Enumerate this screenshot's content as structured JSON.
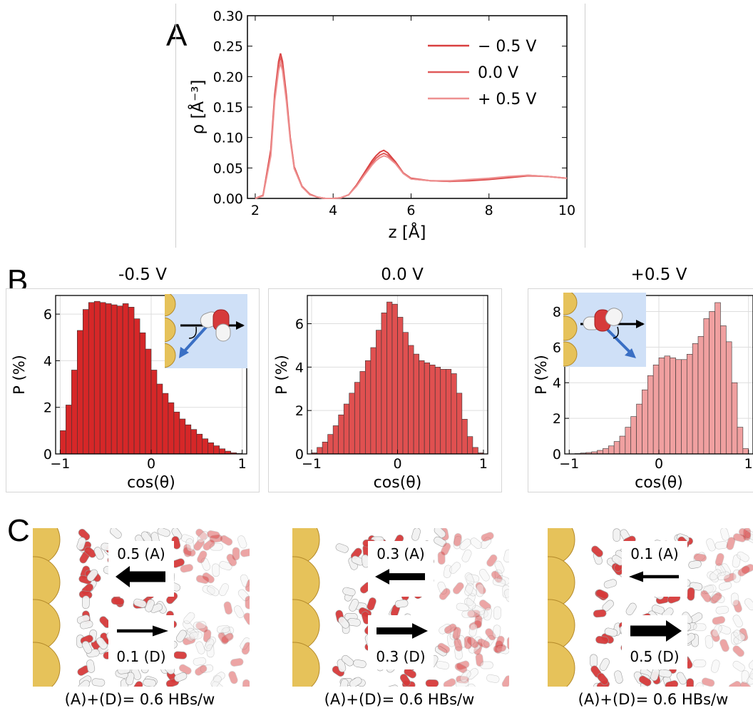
{
  "panels": {
    "a": "A",
    "b": "B",
    "c": "C"
  },
  "colors": {
    "neg": "#d62728",
    "zero": "#e05050",
    "pos": "#f0a0a0",
    "line_neg": "#d94040",
    "line_zero": "#e05a5a",
    "line_pos": "#ee9090",
    "inset_bg": "#cfe0f7",
    "gold": "#e6c25a",
    "oxygen": "#d63a3a"
  },
  "chart_data": [
    {
      "type": "line",
      "panel": "A",
      "xlabel": "z [Å]",
      "ylabel": "ρ [Å⁻³]",
      "xlim": [
        1.8,
        10
      ],
      "ylim": [
        0,
        0.3
      ],
      "x_ticks": [
        "2",
        "4",
        "6",
        "8",
        "10"
      ],
      "y_ticks": [
        "0.00",
        "0.05",
        "0.10",
        "0.15",
        "0.20",
        "0.25",
        "0.30"
      ],
      "legend_position": "top-right",
      "x": [
        2.0,
        2.2,
        2.4,
        2.5,
        2.6,
        2.65,
        2.7,
        2.8,
        2.9,
        3.0,
        3.2,
        3.4,
        3.6,
        3.8,
        4.0,
        4.2,
        4.4,
        4.6,
        4.8,
        5.0,
        5.1,
        5.2,
        5.3,
        5.4,
        5.6,
        5.8,
        6.0,
        6.5,
        7.0,
        7.5,
        8.0,
        8.5,
        9.0,
        9.5,
        10.0
      ],
      "series": [
        {
          "name": "− 0.5 V",
          "values": [
            0.0,
            0.005,
            0.08,
            0.17,
            0.225,
            0.238,
            0.225,
            0.17,
            0.1,
            0.052,
            0.02,
            0.007,
            0.002,
            0.0,
            0.0,
            0.001,
            0.006,
            0.022,
            0.042,
            0.062,
            0.07,
            0.076,
            0.079,
            0.075,
            0.06,
            0.042,
            0.033,
            0.029,
            0.028,
            0.029,
            0.031,
            0.034,
            0.037,
            0.036,
            0.033
          ]
        },
        {
          "name": "0.0 V",
          "values": [
            0.0,
            0.005,
            0.075,
            0.165,
            0.22,
            0.232,
            0.22,
            0.165,
            0.098,
            0.05,
            0.019,
            0.007,
            0.002,
            0.0,
            0.0,
            0.001,
            0.006,
            0.021,
            0.04,
            0.058,
            0.066,
            0.071,
            0.074,
            0.071,
            0.058,
            0.041,
            0.032,
            0.029,
            0.028,
            0.03,
            0.032,
            0.035,
            0.038,
            0.036,
            0.033
          ]
        },
        {
          "name": "+ 0.5 V",
          "values": [
            0.0,
            0.004,
            0.07,
            0.16,
            0.21,
            0.222,
            0.21,
            0.16,
            0.095,
            0.049,
            0.019,
            0.006,
            0.002,
            0.0,
            0.0,
            0.001,
            0.006,
            0.02,
            0.038,
            0.055,
            0.062,
            0.067,
            0.07,
            0.068,
            0.057,
            0.041,
            0.032,
            0.029,
            0.029,
            0.031,
            0.033,
            0.036,
            0.038,
            0.036,
            0.033
          ]
        }
      ]
    },
    {
      "type": "bar",
      "panel": "B",
      "title": "-0.5 V",
      "xlabel": "cos(θ)",
      "ylabel": "P (%)",
      "xlim": [
        -1.05,
        1.05
      ],
      "ylim": [
        0,
        6.8
      ],
      "x_ticks": [
        "−1",
        "0",
        "1"
      ],
      "y_ticks": [
        "0",
        "2",
        "4",
        "6"
      ],
      "bin_width": 0.0625,
      "bin_starts": [
        -1.0,
        -0.9375,
        -0.875,
        -0.8125,
        -0.75,
        -0.6875,
        -0.625,
        -0.5625,
        -0.5,
        -0.4375,
        -0.375,
        -0.3125,
        -0.25,
        -0.1875,
        -0.125,
        -0.0625,
        0.0,
        0.0625,
        0.125,
        0.1875,
        0.25,
        0.3125,
        0.375,
        0.4375,
        0.5,
        0.5625,
        0.625,
        0.6875,
        0.75,
        0.8125,
        0.875,
        0.9375
      ],
      "values": [
        1.0,
        2.1,
        3.6,
        5.3,
        6.2,
        6.5,
        6.55,
        6.5,
        6.45,
        6.4,
        6.35,
        6.45,
        6.3,
        5.8,
        5.2,
        4.5,
        3.6,
        3.0,
        2.6,
        2.2,
        1.8,
        1.5,
        1.25,
        1.05,
        0.85,
        0.65,
        0.48,
        0.35,
        0.22,
        0.12,
        0.05,
        0.02
      ]
    },
    {
      "type": "bar",
      "panel": "B",
      "title": "0.0 V",
      "xlabel": "cos(θ)",
      "ylabel": "P (%)",
      "xlim": [
        -1.05,
        1.05
      ],
      "ylim": [
        0,
        7.3
      ],
      "x_ticks": [
        "−1",
        "0",
        "1"
      ],
      "y_ticks": [
        "0",
        "2",
        "4",
        "6"
      ],
      "bin_width": 0.0625,
      "bin_starts": [
        -1.0,
        -0.9375,
        -0.875,
        -0.8125,
        -0.75,
        -0.6875,
        -0.625,
        -0.5625,
        -0.5,
        -0.4375,
        -0.375,
        -0.3125,
        -0.25,
        -0.1875,
        -0.125,
        -0.0625,
        0.0,
        0.0625,
        0.125,
        0.1875,
        0.25,
        0.3125,
        0.375,
        0.4375,
        0.5,
        0.5625,
        0.625,
        0.6875,
        0.75,
        0.8125,
        0.875,
        0.9375
      ],
      "values": [
        0.05,
        0.3,
        0.55,
        0.9,
        1.3,
        1.8,
        2.3,
        2.8,
        3.3,
        3.8,
        4.3,
        4.9,
        5.7,
        6.5,
        7.0,
        6.9,
        6.3,
        5.6,
        5.0,
        4.6,
        4.3,
        4.2,
        4.1,
        4.0,
        3.9,
        3.9,
        3.7,
        2.8,
        1.6,
        0.8,
        0.3,
        0.05
      ]
    },
    {
      "type": "bar",
      "panel": "B",
      "title": "+0.5 V",
      "xlabel": "cos(θ)",
      "ylabel": "P (%)",
      "xlim": [
        -1.05,
        1.05
      ],
      "ylim": [
        0,
        8.9
      ],
      "x_ticks": [
        "−1",
        "0",
        "1"
      ],
      "y_ticks": [
        "0",
        "2",
        "4",
        "6",
        "8"
      ],
      "bin_width": 0.0625,
      "bin_starts": [
        -1.0,
        -0.9375,
        -0.875,
        -0.8125,
        -0.75,
        -0.6875,
        -0.625,
        -0.5625,
        -0.5,
        -0.4375,
        -0.375,
        -0.3125,
        -0.25,
        -0.1875,
        -0.125,
        -0.0625,
        0.0,
        0.0625,
        0.125,
        0.1875,
        0.25,
        0.3125,
        0.375,
        0.4375,
        0.5,
        0.5625,
        0.625,
        0.6875,
        0.75,
        0.8125,
        0.875,
        0.9375
      ],
      "values": [
        0.0,
        0.02,
        0.05,
        0.08,
        0.12,
        0.2,
        0.3,
        0.45,
        0.7,
        1.0,
        1.5,
        2.1,
        2.8,
        3.6,
        4.4,
        5.0,
        5.4,
        5.5,
        5.4,
        5.3,
        5.3,
        5.6,
        6.2,
        6.6,
        7.6,
        8.0,
        8.5,
        7.2,
        6.3,
        4.0,
        1.5,
        0.3
      ]
    }
  ],
  "panel_c": [
    {
      "top_label": "0.5 (A)",
      "bottom_label": "0.1 (D)",
      "top_weight": 0.5,
      "bottom_weight": 0.1,
      "caption": "(A)+(D)= 0.6 HBs/w"
    },
    {
      "top_label": "0.3 (A)",
      "bottom_label": "0.3 (D)",
      "top_weight": 0.3,
      "bottom_weight": 0.3,
      "caption": "(A)+(D)= 0.6 HBs/w"
    },
    {
      "top_label": "0.1 (A)",
      "bottom_label": "0.5 (D)",
      "top_weight": 0.1,
      "bottom_weight": 0.5,
      "caption": "(A)+(D)= 0.6 HBs/w"
    }
  ]
}
